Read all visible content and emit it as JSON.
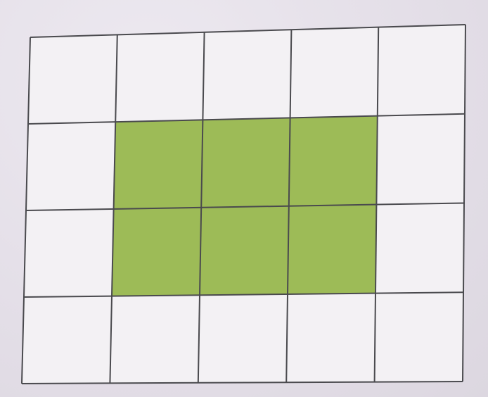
{
  "grid": {
    "rows": 4,
    "cols": 5,
    "shaded_cells": [
      {
        "row": 1,
        "col": 1
      },
      {
        "row": 1,
        "col": 2
      },
      {
        "row": 1,
        "col": 3
      },
      {
        "row": 2,
        "col": 1
      },
      {
        "row": 2,
        "col": 2
      },
      {
        "row": 2,
        "col": 3
      }
    ],
    "colors": {
      "line": "#4a4a4e",
      "shade": "#9dbb57",
      "cell": "#f3f1f4"
    }
  }
}
